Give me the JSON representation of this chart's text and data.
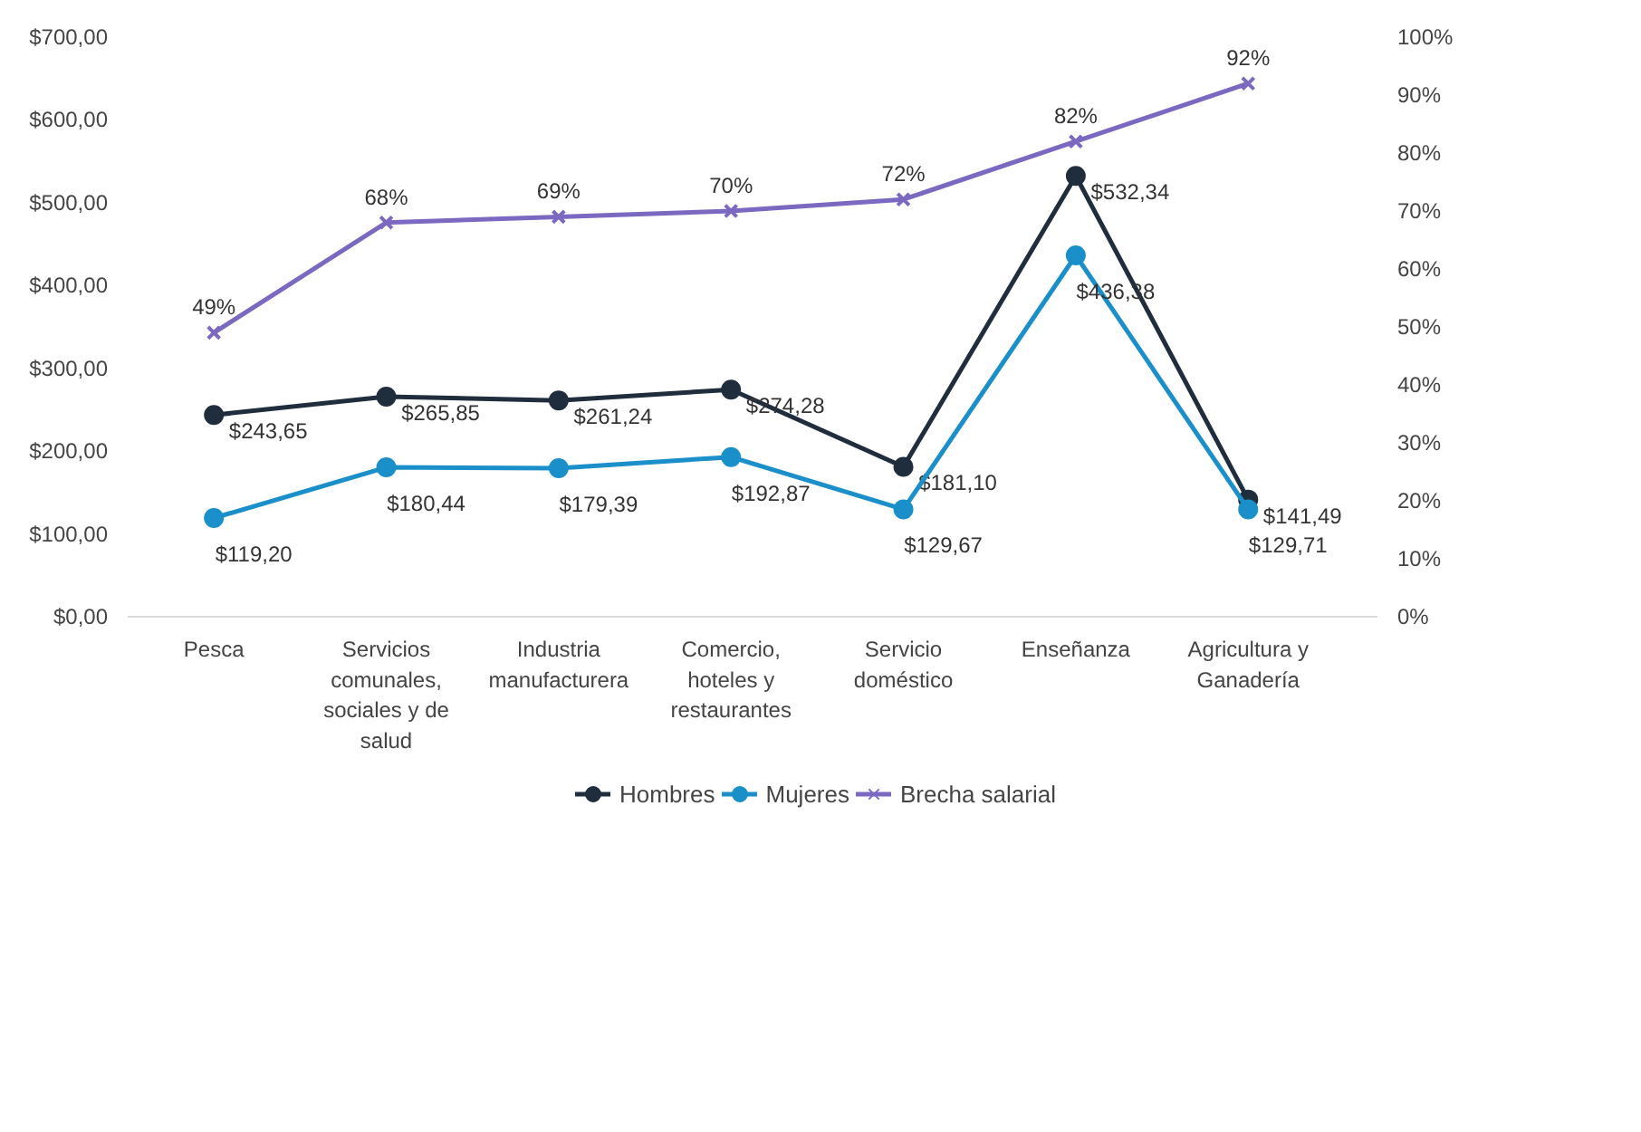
{
  "chart_data": {
    "type": "line",
    "categories": [
      "Pesca",
      "Servicios comunales, sociales y de salud",
      "Industria manufacturera",
      "Comercio, hoteles y restaurantes",
      "Servicio doméstico",
      "Enseñanza",
      "Agricultura y Ganadería"
    ],
    "series": [
      {
        "name": "Hombres",
        "color": "#1f2d3d",
        "marker": "circle",
        "values": [
          243.65,
          265.85,
          261.24,
          274.28,
          181.1,
          532.34,
          141.49
        ],
        "value_labels": [
          "$243,65",
          "$265,85",
          "$261,24",
          "$274,28",
          "$181,10",
          "$532,34",
          "$141,49"
        ]
      },
      {
        "name": "Mujeres",
        "color": "#1a8fc9",
        "marker": "circle",
        "values": [
          119.2,
          180.44,
          179.39,
          192.87,
          129.67,
          436.38,
          129.71
        ],
        "value_labels": [
          "$119,20",
          "$180,44",
          "$179,39",
          "$192,87",
          "$129,67",
          "$436,38",
          "$129,71"
        ]
      },
      {
        "name": "Brecha salarial",
        "color": "#7b68c0",
        "marker": "cross",
        "axis": "y2",
        "values": [
          49,
          68,
          69,
          70,
          72,
          82,
          92
        ],
        "value_labels": [
          "49%",
          "68%",
          "69%",
          "70%",
          "72%",
          "82%",
          "92%"
        ]
      }
    ],
    "ylim": [
      0,
      700
    ],
    "yticks": [
      {
        "value": 0,
        "label": "$0,00"
      },
      {
        "value": 100,
        "label": "$100,00"
      },
      {
        "value": 200,
        "label": "$200,00"
      },
      {
        "value": 300,
        "label": "$300,00"
      },
      {
        "value": 400,
        "label": "$400,00"
      },
      {
        "value": 500,
        "label": "$500,00"
      },
      {
        "value": 600,
        "label": "$600,00"
      },
      {
        "value": 700,
        "label": "$700,00"
      }
    ],
    "y2lim": [
      0,
      100
    ],
    "y2ticks": [
      {
        "value": 0,
        "label": "0%"
      },
      {
        "value": 10,
        "label": "10%"
      },
      {
        "value": 20,
        "label": "20%"
      },
      {
        "value": 30,
        "label": "30%"
      },
      {
        "value": 40,
        "label": "40%"
      },
      {
        "value": 50,
        "label": "50%"
      },
      {
        "value": 60,
        "label": "60%"
      },
      {
        "value": 70,
        "label": "70%"
      },
      {
        "value": 80,
        "label": "80%"
      },
      {
        "value": 90,
        "label": "90%"
      },
      {
        "value": 100,
        "label": "100%"
      }
    ],
    "legend": "bottom",
    "grid": false,
    "line_style": "solid"
  }
}
